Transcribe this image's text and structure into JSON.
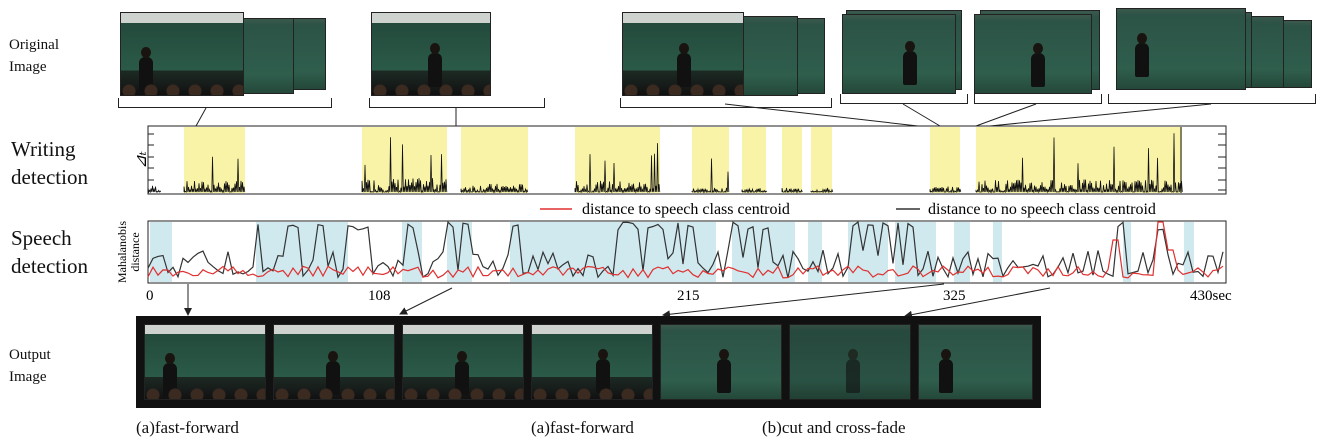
{
  "labels": {
    "original_image": [
      "Original",
      "Image"
    ],
    "writing_detection": [
      "Writing",
      "detection"
    ],
    "speech_detection": [
      "Speech",
      "detection"
    ],
    "output_image": [
      "Output",
      "Image"
    ],
    "writing_y_axis": "⊿ₜ",
    "speech_y_axis": [
      "Mahalanobis",
      "distance"
    ]
  },
  "legend": {
    "red_series": "distance to speech class centroid",
    "black_series": "distance to no speech class centroid"
  },
  "x_axis": {
    "ticks": [
      "0",
      "108",
      "215",
      "325",
      "430sec"
    ]
  },
  "captions": [
    "(a)fast-forward",
    "(a)fast-forward",
    "(b)cut and cross-fade"
  ],
  "colors": {
    "writing_highlight": "#f8f3a6",
    "speech_highlight": "#cfe9ef",
    "red_series": "#e03030",
    "black_series": "#333333"
  }
}
